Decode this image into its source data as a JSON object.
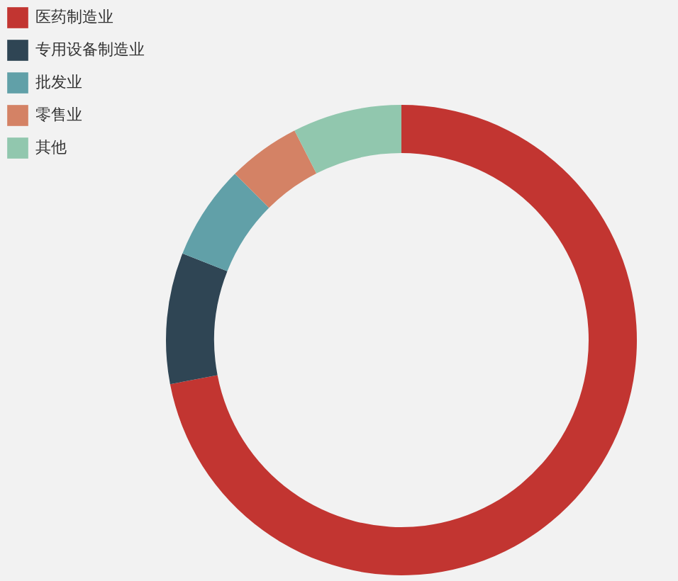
{
  "chart_data": {
    "type": "donut",
    "categories": [
      "医药制造业",
      "专用设备制造业",
      "批发业",
      "零售业",
      "其他"
    ],
    "values": [
      72,
      9,
      6.5,
      5,
      7.5
    ],
    "colors": [
      "#c23531",
      "#2f4554",
      "#61a0a8",
      "#d48265",
      "#91c7ae"
    ],
    "legend": "top left"
  }
}
